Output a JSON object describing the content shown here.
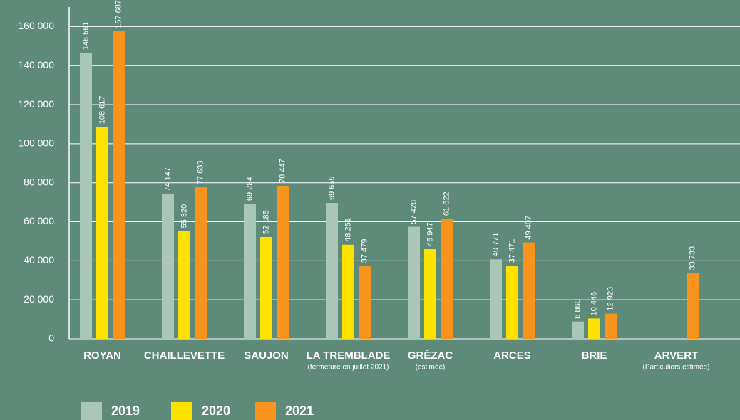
{
  "chart_data": {
    "type": "bar",
    "categories": [
      "ROYAN",
      "CHAILLEVETTE",
      "SAUJON",
      "LA TREMBLADE",
      "GRÉZAC",
      "ARCES",
      "BRIE",
      "ARVERT"
    ],
    "category_notes": [
      null,
      null,
      null,
      "(fermeture en juillet 2021)",
      "(estimée)",
      null,
      null,
      "(Particuliers estimée)"
    ],
    "series": [
      {
        "name": "2019",
        "color": "#a9c6b9",
        "values": [
          146561,
          74147,
          69284,
          69659,
          57428,
          40771,
          8860,
          null
        ],
        "value_labels": [
          "146 561",
          "74 147",
          "69 284",
          "69 659",
          "57 428",
          "40 771",
          "8 860",
          null
        ]
      },
      {
        "name": "2020",
        "color": "#ffe100",
        "values": [
          108617,
          55320,
          52185,
          48251,
          45947,
          37471,
          10446,
          null
        ],
        "value_labels": [
          "108 617",
          "55 320",
          "52 185",
          "48 251",
          "45 947",
          "37 471",
          "10 446",
          null
        ]
      },
      {
        "name": "2021",
        "color": "#f7941d",
        "values": [
          157687,
          77633,
          78447,
          37479,
          61622,
          49407,
          12923,
          33733
        ],
        "value_labels": [
          "157 687",
          "77 633",
          "78 447",
          "37 479",
          "61 622",
          "49 407",
          "12 923",
          "33 733"
        ]
      }
    ],
    "ylim": [
      0,
      170000
    ],
    "yticks": [
      0,
      {
        "value": 20000,
        "label": "20 000"
      },
      {
        "value": 40000,
        "label": "40 000"
      },
      {
        "value": 60000,
        "label": "60 000"
      },
      {
        "value": 80000,
        "label": "80 000"
      },
      {
        "value": 100000,
        "label": "100 000"
      },
      {
        "value": 120000,
        "label": "120 000"
      },
      {
        "value": 140000,
        "label": "140 000"
      },
      {
        "value": 160000,
        "label": "160 000"
      }
    ],
    "grid": true
  }
}
